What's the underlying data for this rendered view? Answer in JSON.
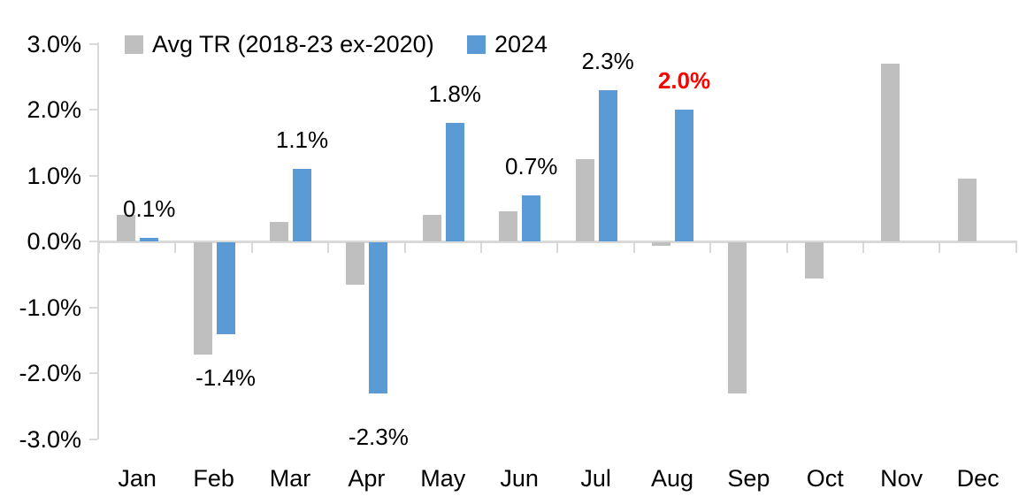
{
  "chart_data": {
    "type": "bar",
    "title": "",
    "categories": [
      "Jan",
      "Feb",
      "Mar",
      "Apr",
      "May",
      "Jun",
      "Jul",
      "Aug",
      "Sep",
      "Oct",
      "Nov",
      "Dec"
    ],
    "series": [
      {
        "name": "Avg TR (2018-23 ex-2020)",
        "color": "#bfbfbf",
        "values": [
          0.4,
          -1.7,
          0.3,
          -0.65,
          0.4,
          0.45,
          1.25,
          -0.05,
          -2.3,
          -0.55,
          2.7,
          0.95
        ]
      },
      {
        "name": "2024",
        "color": "#5b9bd5",
        "values": [
          0.05,
          -1.4,
          1.1,
          -2.3,
          1.8,
          0.7,
          2.3,
          2.0,
          null,
          null,
          null,
          null
        ]
      }
    ],
    "data_labels": [
      {
        "category": "Jan",
        "text": "0.1%",
        "color": "#000000",
        "bold": false
      },
      {
        "category": "Feb",
        "text": "-1.4%",
        "color": "#000000",
        "bold": false
      },
      {
        "category": "Mar",
        "text": "1.1%",
        "color": "#000000",
        "bold": false
      },
      {
        "category": "Apr",
        "text": "-2.3%",
        "color": "#000000",
        "bold": false
      },
      {
        "category": "May",
        "text": "1.8%",
        "color": "#000000",
        "bold": false
      },
      {
        "category": "Jun",
        "text": "0.7%",
        "color": "#000000",
        "bold": false
      },
      {
        "category": "Jul",
        "text": "2.3%",
        "color": "#000000",
        "bold": false
      },
      {
        "category": "Aug",
        "text": "2.0%",
        "color": "#ff0000",
        "bold": true
      }
    ],
    "y_axis": {
      "ticks": [
        {
          "label": "3.0%",
          "value": 3
        },
        {
          "label": "2.0%",
          "value": 2
        },
        {
          "label": "1.0%",
          "value": 1
        },
        {
          "label": "0.0%",
          "value": 0
        },
        {
          "label": "-1.0%",
          "value": -1
        },
        {
          "label": "-2.0%",
          "value": -2
        },
        {
          "label": "-3.0%",
          "value": -3
        }
      ],
      "ylim": [
        -3,
        3
      ]
    },
    "grid": false,
    "legend_position": "top"
  },
  "colors": {
    "axis": "#d9d9d9",
    "background": "#ffffff",
    "text": "#000000"
  }
}
